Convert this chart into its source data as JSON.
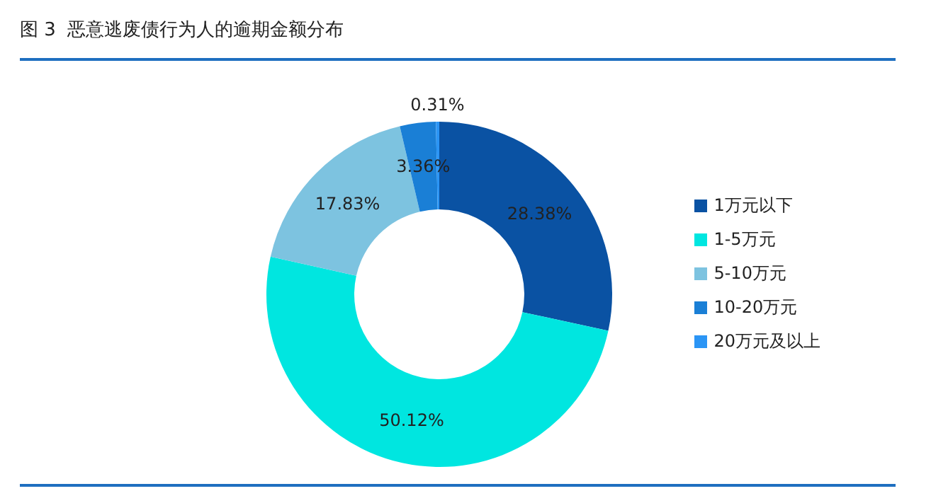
{
  "chart_data": {
    "type": "donut",
    "title": "图 3  恶意逃废债行为人的逾期金额分布",
    "categories": [
      "1万元以下",
      "1-5万元",
      "5-10万元",
      "10-20万元",
      "20万元及以上"
    ],
    "values": [
      28.38,
      50.12,
      17.83,
      3.36,
      0.31
    ],
    "colors": [
      "#0a52a3",
      "#00e6e0",
      "#7dc3e0",
      "#1a7fd6",
      "#2b95f5"
    ],
    "value_labels": [
      "28.38%",
      "50.12%",
      "17.83%",
      "3.36%",
      "0.31%"
    ],
    "legend": "right"
  }
}
